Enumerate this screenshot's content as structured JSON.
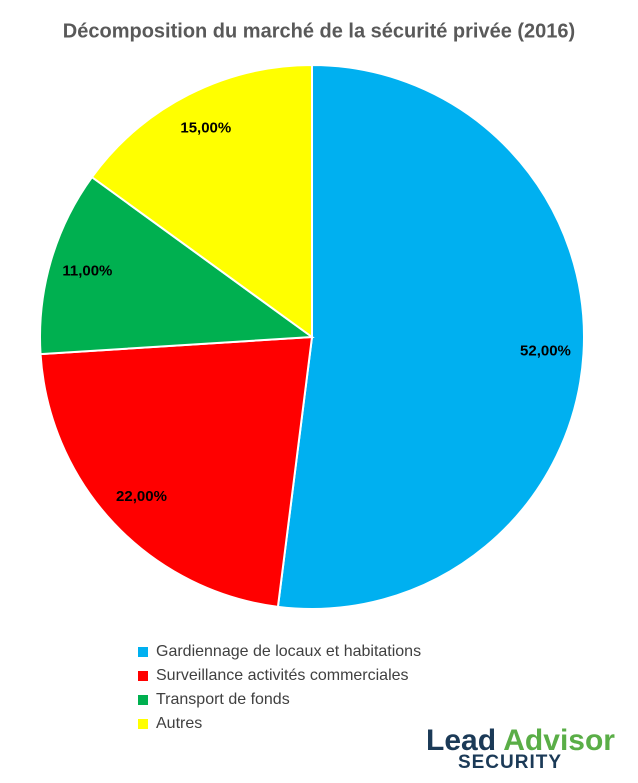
{
  "chart_data": {
    "type": "pie",
    "title": "Décomposition du marché de la sécurité privée (2016)",
    "categories": [
      "Gardiennage de locaux et habitations",
      "Surveillance activités commerciales",
      "Transport de fonds",
      "Autres"
    ],
    "values": [
      52,
      22,
      11,
      15
    ],
    "value_labels": [
      "52,00%",
      "22,00%",
      "11,00%",
      "15,00%"
    ],
    "colors": [
      "#00b0f0",
      "#ff0000",
      "#00b050",
      "#ffff00"
    ],
    "legend": "bottom"
  },
  "logo": {
    "lead": "Lead",
    "advisor": "Advisor",
    "sub": "SECURITY"
  }
}
